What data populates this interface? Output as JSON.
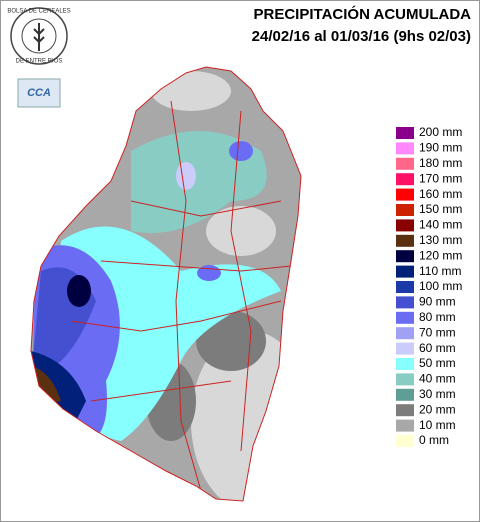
{
  "header": {
    "title": "PRECIPITACIÓN ACUMULADA",
    "subtitle": "24/02/16 al 01/03/16 (9hs 02/03)"
  },
  "logo": {
    "top_text": "BOLSA DE CEREALES",
    "bottom_text": "DE ENTRE RIOS",
    "badge": "CCA"
  },
  "legend": [
    {
      "label": "200 mm",
      "color": "#8b008b"
    },
    {
      "label": "190 mm",
      "color": "#ff88ff"
    },
    {
      "label": "180 mm",
      "color": "#ff6688"
    },
    {
      "label": "170 mm",
      "color": "#ff1166"
    },
    {
      "label": "160 mm",
      "color": "#ff0000"
    },
    {
      "label": "150 mm",
      "color": "#cc2200"
    },
    {
      "label": "140 mm",
      "color": "#880000"
    },
    {
      "label": "130 mm",
      "color": "#5a3010"
    },
    {
      "label": "120 mm",
      "color": "#000040"
    },
    {
      "label": "110 mm",
      "color": "#00207a"
    },
    {
      "label": "100 mm",
      "color": "#1a3aa8"
    },
    {
      "label": "90 mm",
      "color": "#4450d0"
    },
    {
      "label": "80 mm",
      "color": "#6a6cf4"
    },
    {
      "label": "70 mm",
      "color": "#a0a0f4"
    },
    {
      "label": "60 mm",
      "color": "#ccccfa"
    },
    {
      "label": "50 mm",
      "color": "#88ffff"
    },
    {
      "label": "40 mm",
      "color": "#88ccc4"
    },
    {
      "label": "30 mm",
      "color": "#5f9e94"
    },
    {
      "label": "20 mm",
      "color": "#7c7c7c"
    },
    {
      "label": "10 mm",
      "color": "#a8a8a8"
    },
    {
      "label": "0 mm",
      "color": "#ffffd0"
    }
  ]
}
